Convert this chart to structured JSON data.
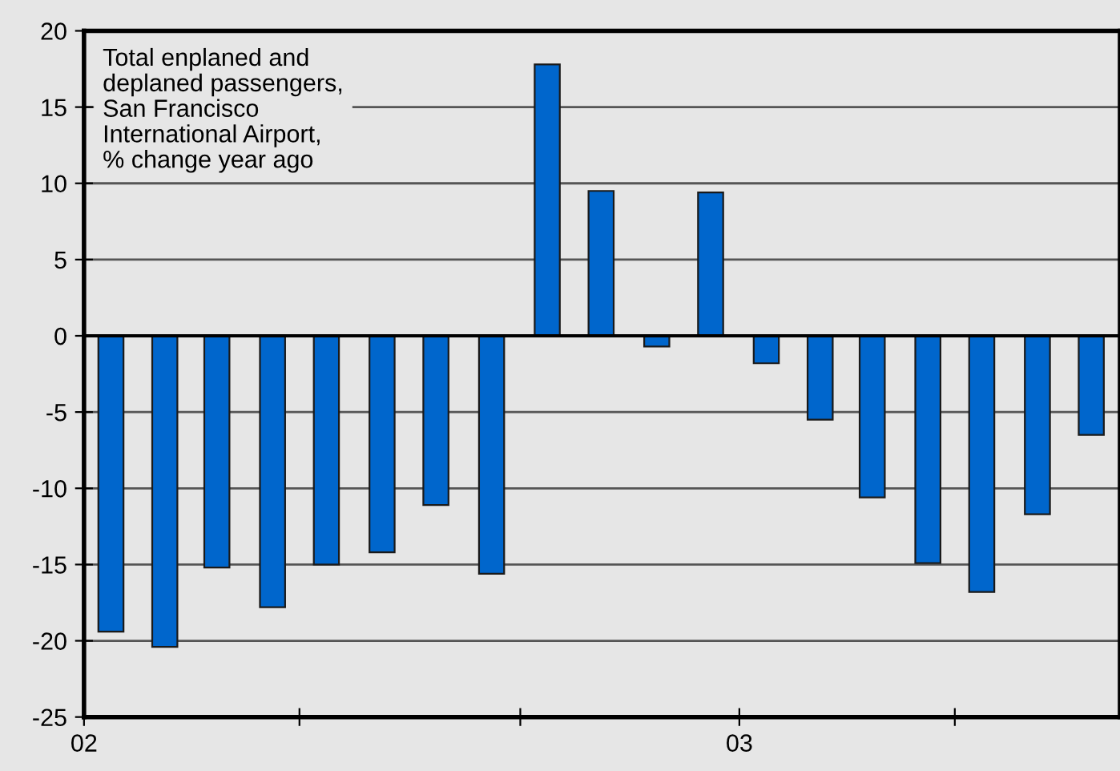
{
  "chart_data": {
    "type": "bar",
    "x": [
      "2002-01-16",
      "2002-02-15",
      "2002-03-16",
      "2002-04-16",
      "2002-05-16",
      "2002-06-16",
      "2002-07-16",
      "2002-08-16",
      "2002-09-16",
      "2002-10-16",
      "2002-11-16",
      "2002-12-16",
      "2003-01-16",
      "2003-02-15",
      "2003-03-16",
      "2003-04-16",
      "2003-05-16",
      "2003-06-16",
      "2003-07-16"
    ],
    "values": [
      -19.4,
      -20.4,
      -15.2,
      -17.8,
      -15.0,
      -14.2,
      -11.1,
      -15.6,
      17.8,
      9.5,
      -0.7,
      9.4,
      -1.8,
      -5.5,
      -10.6,
      -14.9,
      -16.8,
      -11.7,
      -6.5
    ],
    "color": "#0066cc",
    "xlim": [
      "2002-01",
      "2003-08"
    ],
    "xticks": [
      {
        "value": "2002-01",
        "label": "02"
      },
      {
        "value": "2002-05",
        "label": null
      },
      {
        "value": "2002-09",
        "label": null
      },
      {
        "value": "2003-01",
        "label": "03"
      },
      {
        "value": "2003-05",
        "label": null
      }
    ],
    "ylim": [
      -25,
      20
    ],
    "yticks": [
      -25,
      -20,
      -15,
      -10,
      -5,
      0,
      5,
      10,
      15,
      20
    ],
    "grid": "y",
    "annotations": [
      "Total enplaned and\ndeplaned passengers,\nSan Francisco\nInternational Airport,\n% change year ago"
    ]
  }
}
